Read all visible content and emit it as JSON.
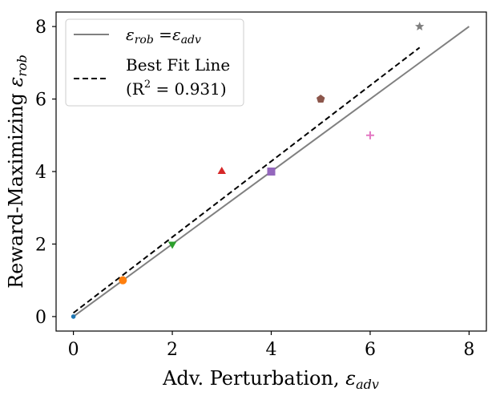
{
  "chart_data": {
    "type": "scatter",
    "title": "",
    "xlabel": "Adv. Perturbation, ",
    "xlabel_symbol": "ε",
    "xlabel_sub": "adv",
    "ylabel": "Reward-Maximizing ",
    "ylabel_symbol": "ε",
    "ylabel_sub": "rob",
    "xlim": [
      -0.35,
      8.35
    ],
    "ylim": [
      -0.4,
      8.4
    ],
    "xticks": [
      0,
      2,
      4,
      6,
      8
    ],
    "yticks": [
      0,
      2,
      4,
      6,
      8
    ],
    "xtick_labels": [
      "0",
      "2",
      "4",
      "6",
      "8"
    ],
    "ytick_labels": [
      "0",
      "2",
      "4",
      "6",
      "8"
    ],
    "grid": false,
    "legend_position": "top-left",
    "points": [
      {
        "x": 0,
        "y": 0,
        "marker": "circle-small",
        "color": "#1f77b4"
      },
      {
        "x": 1,
        "y": 1,
        "marker": "circle",
        "color": "#ff7f0e"
      },
      {
        "x": 2,
        "y": 2,
        "marker": "triangle-down",
        "color": "#2ca02c"
      },
      {
        "x": 3,
        "y": 4,
        "marker": "triangle-up",
        "color": "#d62728"
      },
      {
        "x": 4,
        "y": 4,
        "marker": "square",
        "color": "#9467bd"
      },
      {
        "x": 5,
        "y": 6,
        "marker": "pentagon",
        "color": "#8c564b"
      },
      {
        "x": 6,
        "y": 5,
        "marker": "plus",
        "color": "#e377c2"
      },
      {
        "x": 7,
        "y": 8,
        "marker": "star",
        "color": "#7f7f7f"
      }
    ],
    "series": [
      {
        "name": "identity",
        "style": "solid",
        "color": "#808080",
        "x": [
          0,
          8
        ],
        "y": [
          0,
          8
        ]
      },
      {
        "name": "best-fit",
        "style": "dashed",
        "color": "#000000",
        "x": [
          0,
          7
        ],
        "y": [
          0.1,
          7.42
        ]
      }
    ],
    "legend": [
      {
        "id": "identity",
        "text_a": "ε",
        "sub_a": "rob",
        "text_eq": " =",
        "text_b": "ε",
        "sub_b": "adv"
      },
      {
        "id": "best-fit",
        "line1": "Best Fit Line",
        "line2_prefix": "(R",
        "line2_sup": "2",
        "line2_suffix": " = 0.931)"
      }
    ]
  }
}
